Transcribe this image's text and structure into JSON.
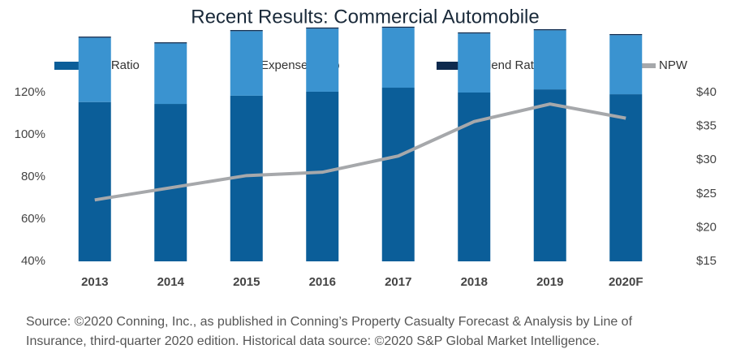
{
  "chart_data": {
    "type": "bar",
    "title": "Recent Results: Commercial Automobile",
    "categories": [
      "2013",
      "2014",
      "2015",
      "2016",
      "2017",
      "2018",
      "2019",
      "2020F"
    ],
    "series": [
      {
        "name": "Loss Ratio",
        "color": "#0b5e99",
        "values": [
          75.5,
          74.6,
          78.5,
          80.4,
          82.3,
          80.0,
          81.5,
          79.2
        ]
      },
      {
        "name": "Expense Ratio",
        "color": "#3a93d0",
        "values": [
          30.5,
          28.7,
          30.6,
          29.9,
          28.4,
          28.0,
          28.0,
          28.0
        ]
      },
      {
        "name": "Dividend Ratio",
        "color": "#0e2a4e",
        "values": [
          0.5,
          0.5,
          0.5,
          0.5,
          0.5,
          0.5,
          0.5,
          0.5
        ]
      },
      {
        "name": "NPW",
        "color": "#a6a8ab",
        "type": "line",
        "axis": "y2",
        "values": [
          24.1,
          25.9,
          27.7,
          28.2,
          30.6,
          35.7,
          38.3,
          36.2
        ]
      }
    ],
    "stacked": true,
    "ylim": [
      40,
      120
    ],
    "yticks": [
      {
        "value": 40,
        "label": "40%"
      },
      {
        "value": 60,
        "label": "60%"
      },
      {
        "value": 80,
        "label": "80%"
      },
      {
        "value": 100,
        "label": "100%"
      },
      {
        "value": 120,
        "label": "120%"
      }
    ],
    "y2lim": [
      15,
      40
    ],
    "y2ticks": [
      {
        "value": 15,
        "label": "$15"
      },
      {
        "value": 20,
        "label": "$20"
      },
      {
        "value": 25,
        "label": "$25"
      },
      {
        "value": 30,
        "label": "$30"
      },
      {
        "value": 35,
        "label": "$35"
      },
      {
        "value": 40,
        "label": "$40"
      }
    ],
    "grid": false,
    "legend": "top",
    "source": [
      "Source: ©2020 Conning, Inc., as published in Conning’s Property Casualty Forecast & Analysis by Line of",
      "Insurance, third-quarter 2020 edition. Historical data source: ©2020 S&P Global Market Intelligence."
    ]
  }
}
